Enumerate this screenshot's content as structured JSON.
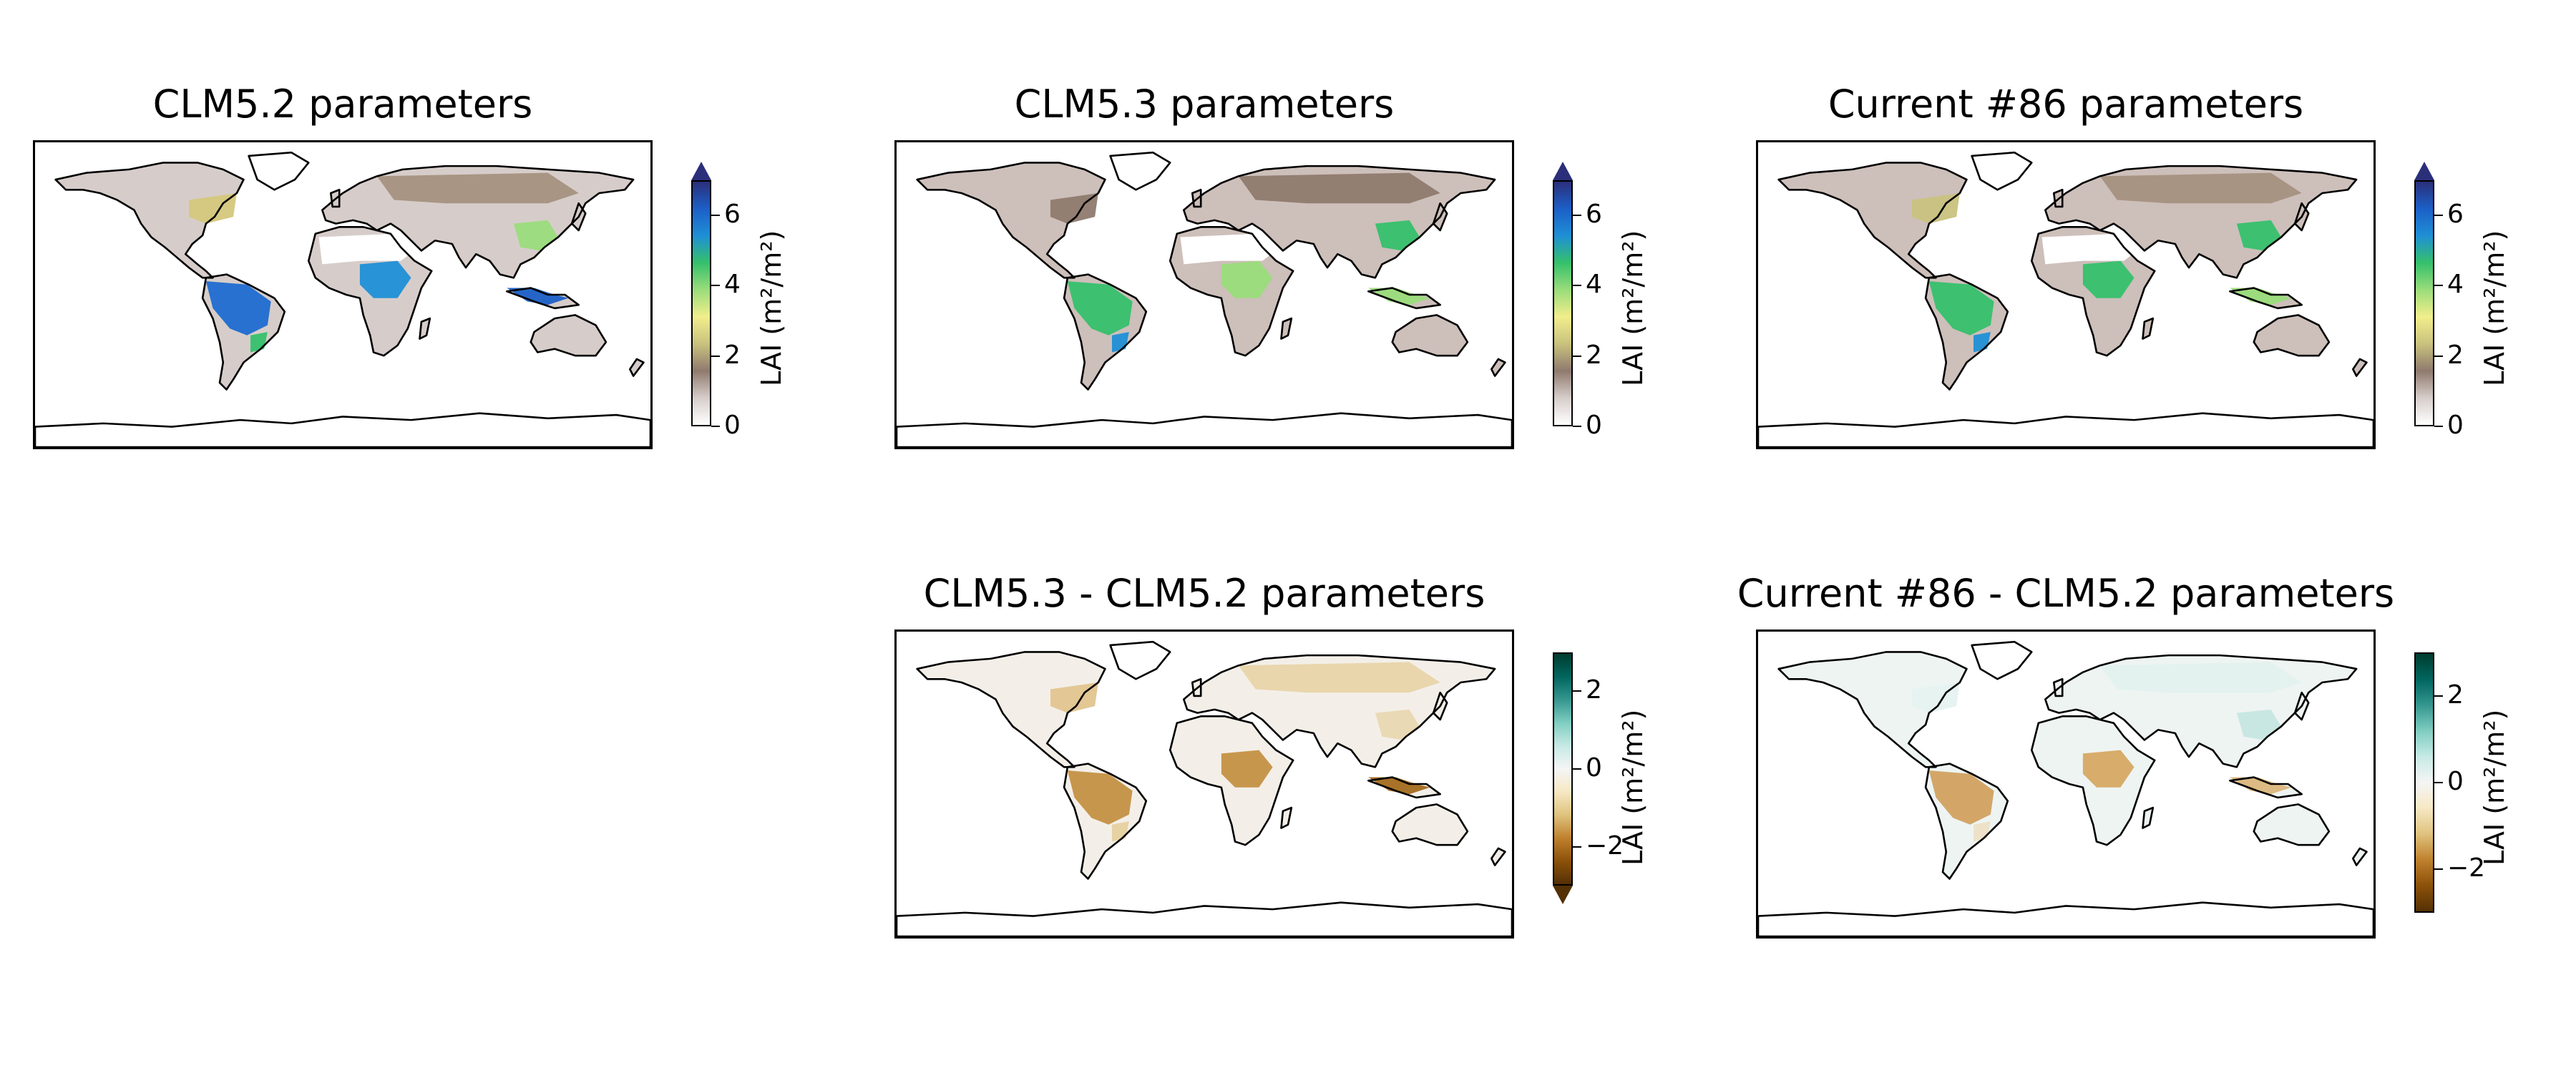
{
  "panels": [
    {
      "title": "CLM5.2 parameters",
      "colorbar": {
        "label": "LAI (m²/m²)",
        "ticks": [
          "0",
          "2",
          "4",
          "6"
        ],
        "range": [
          0,
          7
        ],
        "extend": "max",
        "cmap": "terrain_r"
      }
    },
    {
      "title": "CLM5.3 parameters",
      "colorbar": {
        "label": "LAI (m²/m²)",
        "ticks": [
          "0",
          "2",
          "4",
          "6"
        ],
        "range": [
          0,
          7
        ],
        "extend": "max",
        "cmap": "terrain_r"
      }
    },
    {
      "title": "Current #86 parameters",
      "colorbar": {
        "label": "LAI (m²/m²)",
        "ticks": [
          "0",
          "2",
          "4",
          "6"
        ],
        "range": [
          0,
          7
        ],
        "extend": "max",
        "cmap": "terrain_r"
      }
    },
    {
      "title": "CLM5.3 - CLM5.2 parameters",
      "colorbar": {
        "label": "LAI (m²/m²)",
        "ticks": [
          "−2",
          "0",
          "2"
        ],
        "range": [
          -3,
          3
        ],
        "extend": "min",
        "cmap": "BrBG"
      }
    },
    {
      "title": "Current #86 - CLM5.2 parameters",
      "colorbar": {
        "label": "LAI (m²/m²)",
        "ticks": [
          "−2",
          "0",
          "2"
        ],
        "range": [
          -3,
          3
        ],
        "extend": "neither",
        "cmap": "BrBG"
      }
    }
  ],
  "colors": {
    "lai_scale": [
      "#ffffff",
      "#d6cdca",
      "#8f7a6e",
      "#c9c27e",
      "#f2ee8c",
      "#9adc7b",
      "#35c06b",
      "#1f8fd6",
      "#1c5fc7",
      "#2b2f7a"
    ],
    "diff_scale": [
      "#543005",
      "#8c510a",
      "#bf812d",
      "#dfc27d",
      "#f6e8c3",
      "#f5f5f5",
      "#c7eae5",
      "#80cdc1",
      "#35978f",
      "#01665e",
      "#003c30"
    ]
  }
}
